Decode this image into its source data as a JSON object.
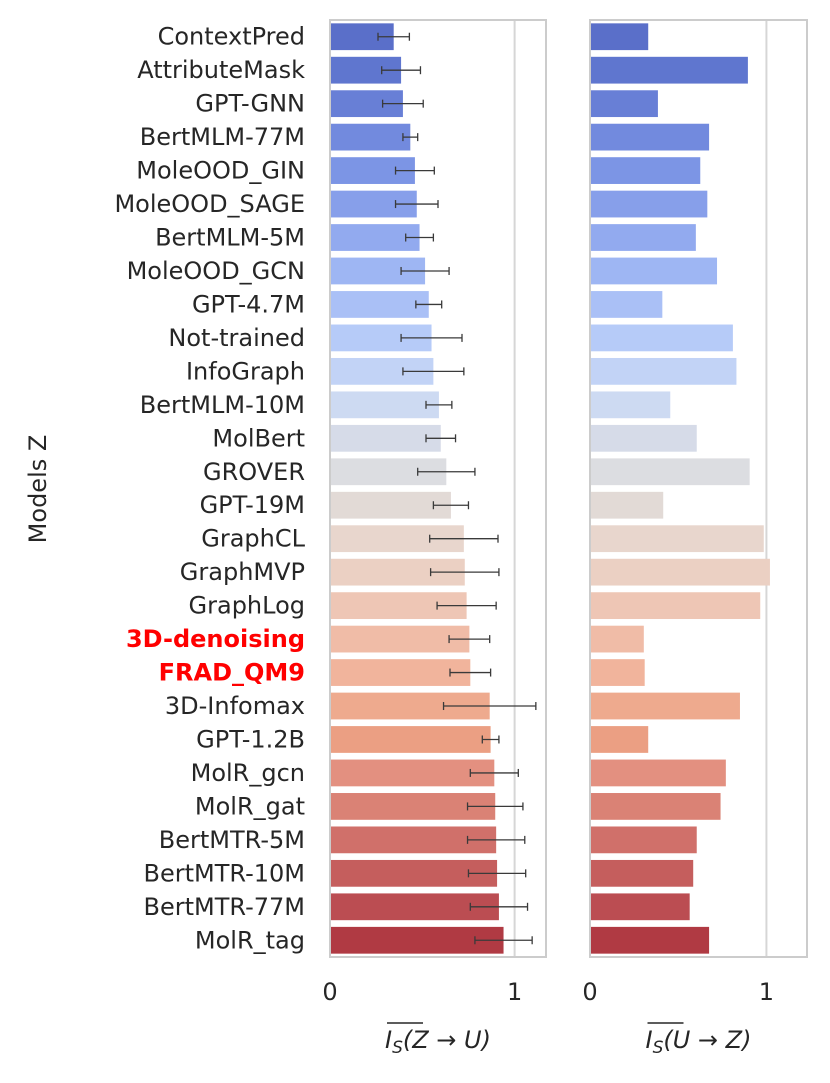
{
  "chart_data": {
    "type": "bar",
    "orientation": "horizontal",
    "ylabel": "Models Z",
    "highlight_color": "#ff0000",
    "categories": [
      "ContextPred",
      "AttributeMask",
      "GPT-GNN",
      "BertMLM-77M",
      "MoleOOD_GIN",
      "MoleOOD_SAGE",
      "BertMLM-5M",
      "MoleOOD_GCN",
      "GPT-4.7M",
      "Not-trained",
      "InfoGraph",
      "BertMLM-10M",
      "MolBert",
      "GROVER",
      "GPT-19M",
      "GraphCL",
      "GraphMVP",
      "GraphLog",
      "3D-denoising",
      "FRAD_QM9",
      "3D-Infomax",
      "GPT-1.2B",
      "MolR_gcn",
      "MolR_gat",
      "BertMTR-5M",
      "BertMTR-10M",
      "BertMTR-77M",
      "MolR_tag"
    ],
    "highlighted": [
      "3D-denoising",
      "FRAD_QM9"
    ],
    "colors": [
      "#5a6fc9",
      "#5f76cf",
      "#687fd6",
      "#728ade",
      "#7c95e5",
      "#879fea",
      "#92aaef",
      "#9eb6f3",
      "#aac0f6",
      "#b6cbf8",
      "#c2d3f6",
      "#cddaf2",
      "#d6dbe8",
      "#dcdde1",
      "#e2dad6",
      "#e8d6cd",
      "#ebd0c3",
      "#eec6b5",
      "#f0bca7",
      "#f1b49c",
      "#eeaa8e",
      "#eb9f83",
      "#e39080",
      "#da8275",
      "#d0706a",
      "#c55e5d",
      "#bb4d52",
      "#b03a43"
    ],
    "subplots": [
      {
        "xlabel_prefix": "I",
        "xlabel_sub": "S",
        "xlabel_args": "(Z → U)",
        "xlim": [
          0,
          1.17
        ],
        "xticks": [
          0,
          1
        ],
        "xtick_labels": [
          "0",
          "1"
        ],
        "grid": true,
        "values": [
          0.345,
          0.385,
          0.395,
          0.435,
          0.46,
          0.47,
          0.485,
          0.515,
          0.535,
          0.55,
          0.56,
          0.59,
          0.6,
          0.63,
          0.655,
          0.725,
          0.73,
          0.74,
          0.755,
          0.76,
          0.865,
          0.87,
          0.89,
          0.895,
          0.9,
          0.905,
          0.915,
          0.94
        ],
        "errors": [
          0.085,
          0.105,
          0.11,
          0.04,
          0.105,
          0.115,
          0.075,
          0.13,
          0.07,
          0.165,
          0.165,
          0.07,
          0.08,
          0.155,
          0.095,
          0.185,
          0.185,
          0.16,
          0.11,
          0.11,
          0.25,
          0.045,
          0.13,
          0.15,
          0.155,
          0.155,
          0.155,
          0.155
        ]
      },
      {
        "xlabel_prefix": "I",
        "xlabel_sub": "S",
        "xlabel_args": "(U → Z)",
        "xlim": [
          0,
          1.23
        ],
        "xticks": [
          0,
          1
        ],
        "xtick_labels": [
          "0",
          "1"
        ],
        "grid": true,
        "values": [
          0.33,
          0.895,
          0.385,
          0.675,
          0.625,
          0.665,
          0.6,
          0.72,
          0.41,
          0.81,
          0.83,
          0.455,
          0.605,
          0.905,
          0.415,
          0.985,
          1.02,
          0.965,
          0.305,
          0.31,
          0.85,
          0.33,
          0.77,
          0.74,
          0.605,
          0.585,
          0.565,
          0.675
        ]
      }
    ]
  }
}
